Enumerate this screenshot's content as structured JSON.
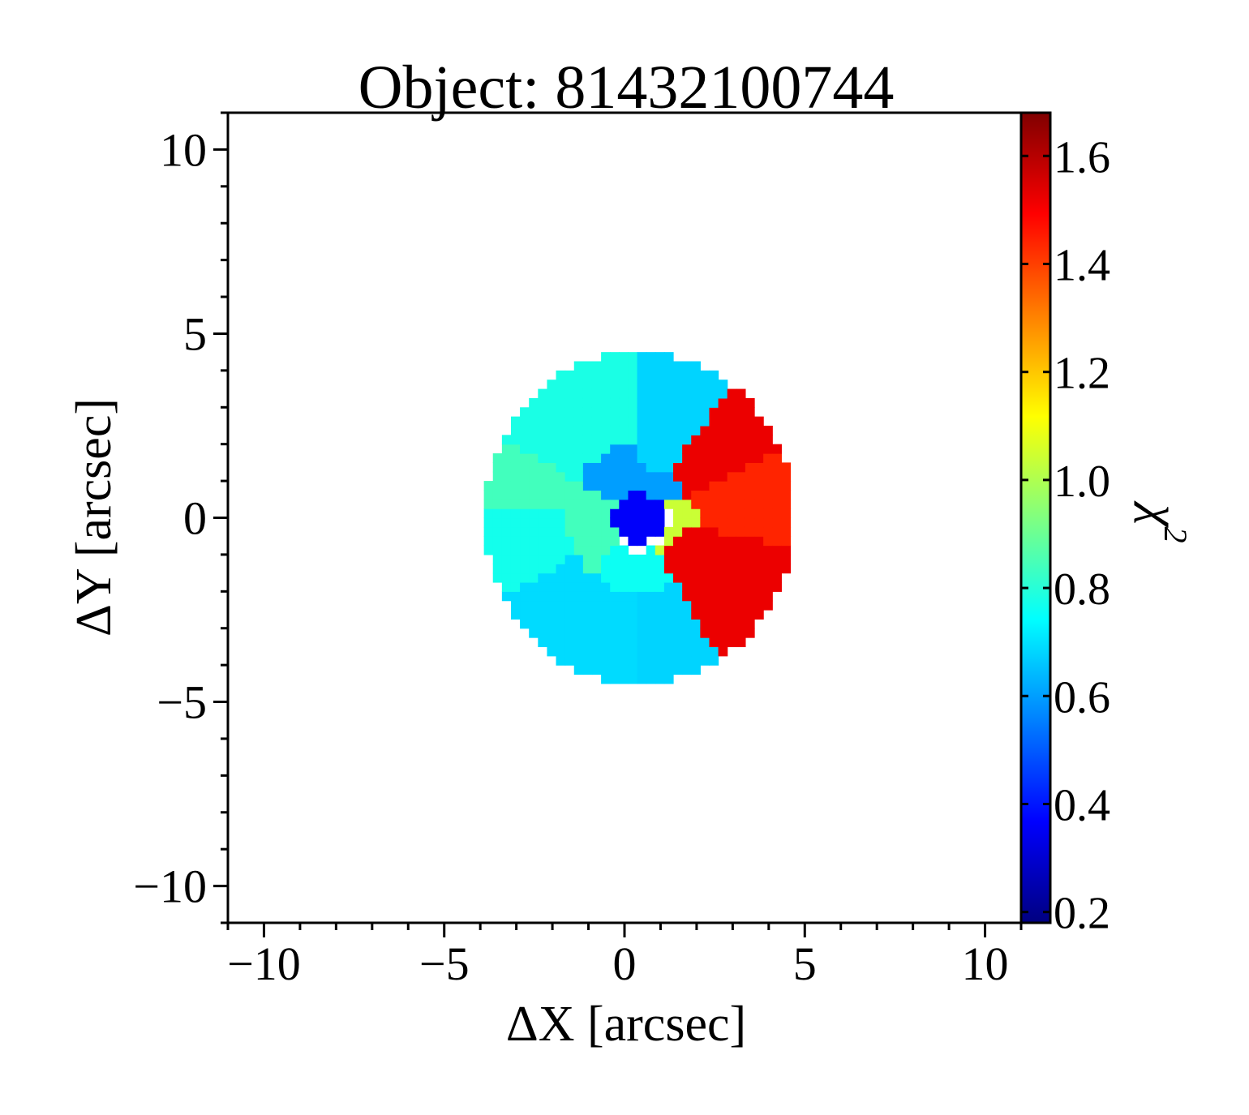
{
  "chart_data": {
    "type": "heatmap",
    "title": "Object: 81432100744",
    "xlabel": "ΔX [arcsec]",
    "ylabel": "ΔY [arcsec]",
    "xlim": [
      -11,
      11
    ],
    "ylim": [
      -11,
      11
    ],
    "x_ticks": [
      -10,
      -5,
      0,
      5,
      10
    ],
    "y_ticks": [
      10,
      5,
      0,
      -5,
      -10
    ],
    "x_tick_labels": [
      "−10",
      "−5",
      "0",
      "5",
      "10"
    ],
    "y_tick_labels": [
      "10",
      "5",
      "0",
      "−5",
      "−10"
    ],
    "colorbar": {
      "label": "χ",
      "label_superscript": "2",
      "colormap": "jet",
      "range": [
        0.18,
        1.68
      ],
      "ticks": [
        1.6,
        1.4,
        1.2,
        1.0,
        0.8,
        0.6,
        0.4,
        0.2
      ],
      "tick_labels": [
        "1.6",
        "1.4",
        "1.2",
        "1.0",
        "0.8",
        "0.6",
        "0.4",
        "0.2"
      ]
    },
    "grid": false,
    "region": {
      "description_shape": "ellipse",
      "center": [
        0.4,
        0.0
      ],
      "radius_x": 4.3,
      "radius_y": 4.5
    },
    "bins": [
      {
        "name": "upper-left-outer",
        "theta_start": 90,
        "theta_end": 150,
        "r_min": 2.0,
        "value": 0.78
      },
      {
        "name": "left-upper-outer",
        "theta_start": 150,
        "theta_end": 175,
        "r_min": 2.0,
        "value": 0.84
      },
      {
        "name": "left-outer",
        "theta_start": 175,
        "theta_end": 210,
        "r_min": 2.0,
        "value": 0.77
      },
      {
        "name": "lower-left-outer",
        "theta_start": 210,
        "theta_end": 268,
        "r_min": 2.0,
        "value": 0.69
      },
      {
        "name": "bottom-outer",
        "theta_start": 268,
        "theta_end": 300,
        "r_min": 2.0,
        "value": 0.68
      },
      {
        "name": "lower-right-outer",
        "theta_start": 300,
        "theta_end": 350,
        "r_min": 1.2,
        "value": 1.52
      },
      {
        "name": "right-outer",
        "theta_start": 350,
        "theta_end": 385,
        "r_min": 1.6,
        "value": 1.44
      },
      {
        "name": "upper-right-outer",
        "theta_start": 25,
        "theta_end": 55,
        "r_min": 1.4,
        "value": 1.52
      },
      {
        "name": "top-outer",
        "theta_start": 55,
        "theta_end": 90,
        "r_min": 1.4,
        "value": 0.68
      },
      {
        "name": "inner-upper",
        "theta_start": 30,
        "theta_end": 150,
        "r_min": 0.7,
        "r_max": 2.0,
        "value": 0.6
      },
      {
        "name": "inner-lower",
        "theta_start": 230,
        "theta_end": 300,
        "r_min": 0.9,
        "r_max": 2.0,
        "value": 0.76
      },
      {
        "name": "inner-left",
        "theta_start": 150,
        "theta_end": 230,
        "r_min": 0.7,
        "r_max": 2.0,
        "value": 0.84
      },
      {
        "name": "inner-right",
        "theta_start": 300,
        "theta_end": 390,
        "r_min": 0.9,
        "r_max": 1.6,
        "value": 1.04
      },
      {
        "name": "core",
        "theta_start": 0,
        "theta_end": 360,
        "r_min": 0.0,
        "r_max": 0.7,
        "value": 0.36
      }
    ]
  }
}
